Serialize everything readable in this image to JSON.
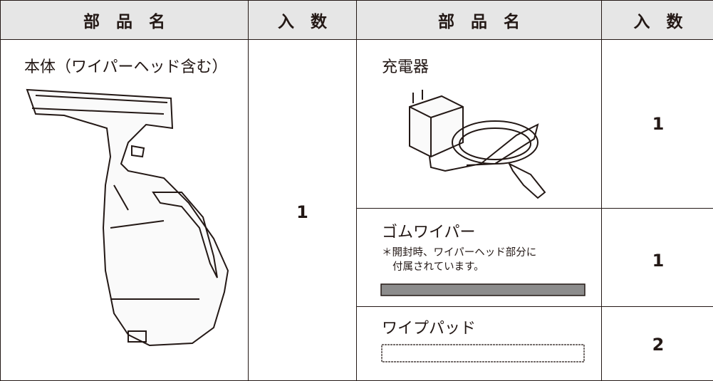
{
  "table": {
    "header": [
      "部　品　名",
      "入　数",
      "部　品　名",
      "入　数"
    ],
    "items": [
      {
        "name": "本体（ワイパーヘッド含む）",
        "quantity": "1"
      },
      {
        "name": "充電器",
        "quantity": "1"
      },
      {
        "name": "ゴムワイパー",
        "note": [
          "＊開封時、ワイパーヘッド部分に",
          "付属されています。"
        ],
        "quantity": "1"
      },
      {
        "name": "ワイプパッド",
        "quantity": "2"
      }
    ]
  }
}
